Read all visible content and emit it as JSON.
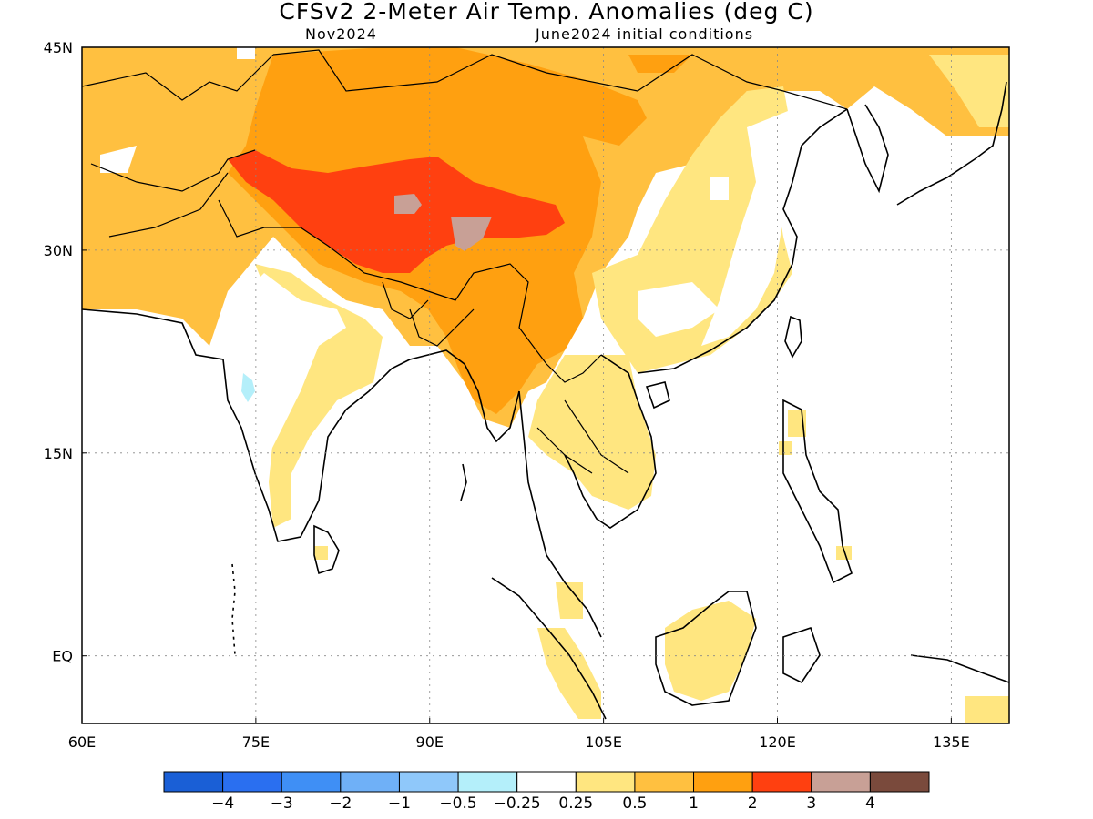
{
  "title": "CFSv2 2-Meter Air Temp. Anomalies (deg C)",
  "subtitle_left": "Nov2024",
  "subtitle_right": "June2024 initial conditions",
  "map": {
    "lon_ticks": [
      "60E",
      "75E",
      "90E",
      "105E",
      "120E",
      "135E"
    ],
    "lat_ticks": [
      "45N",
      "30N",
      "15N",
      "EQ"
    ],
    "lon_range": [
      60,
      140
    ],
    "lat_range": [
      -5,
      45
    ],
    "grid": "dotted",
    "region": "South and East Asia"
  },
  "colorbar": {
    "labels": [
      "-4",
      "-3",
      "-2",
      "-1",
      "-0.5",
      "-0.25",
      "0.25",
      "0.5",
      "1",
      "2",
      "3",
      "4"
    ],
    "colors": [
      "#1a5fd6",
      "#2a6ff0",
      "#3f8ff5",
      "#6fb0f7",
      "#8fc8fa",
      "#b4effa",
      "#ffffff",
      "#ffe680",
      "#ffc040",
      "#ffa010",
      "#ff4010",
      "#c8a096",
      "#7a4a3c"
    ]
  },
  "anomaly_colors": {
    "lt_0_5": "#ffe680",
    "0_5_to_1": "#ffc040",
    "1_to_2": "#ffa010",
    "2_to_3": "#ff4010",
    "3_to_4": "#c8a096",
    "neg_0_5_to_0_25": "#b4effa"
  }
}
